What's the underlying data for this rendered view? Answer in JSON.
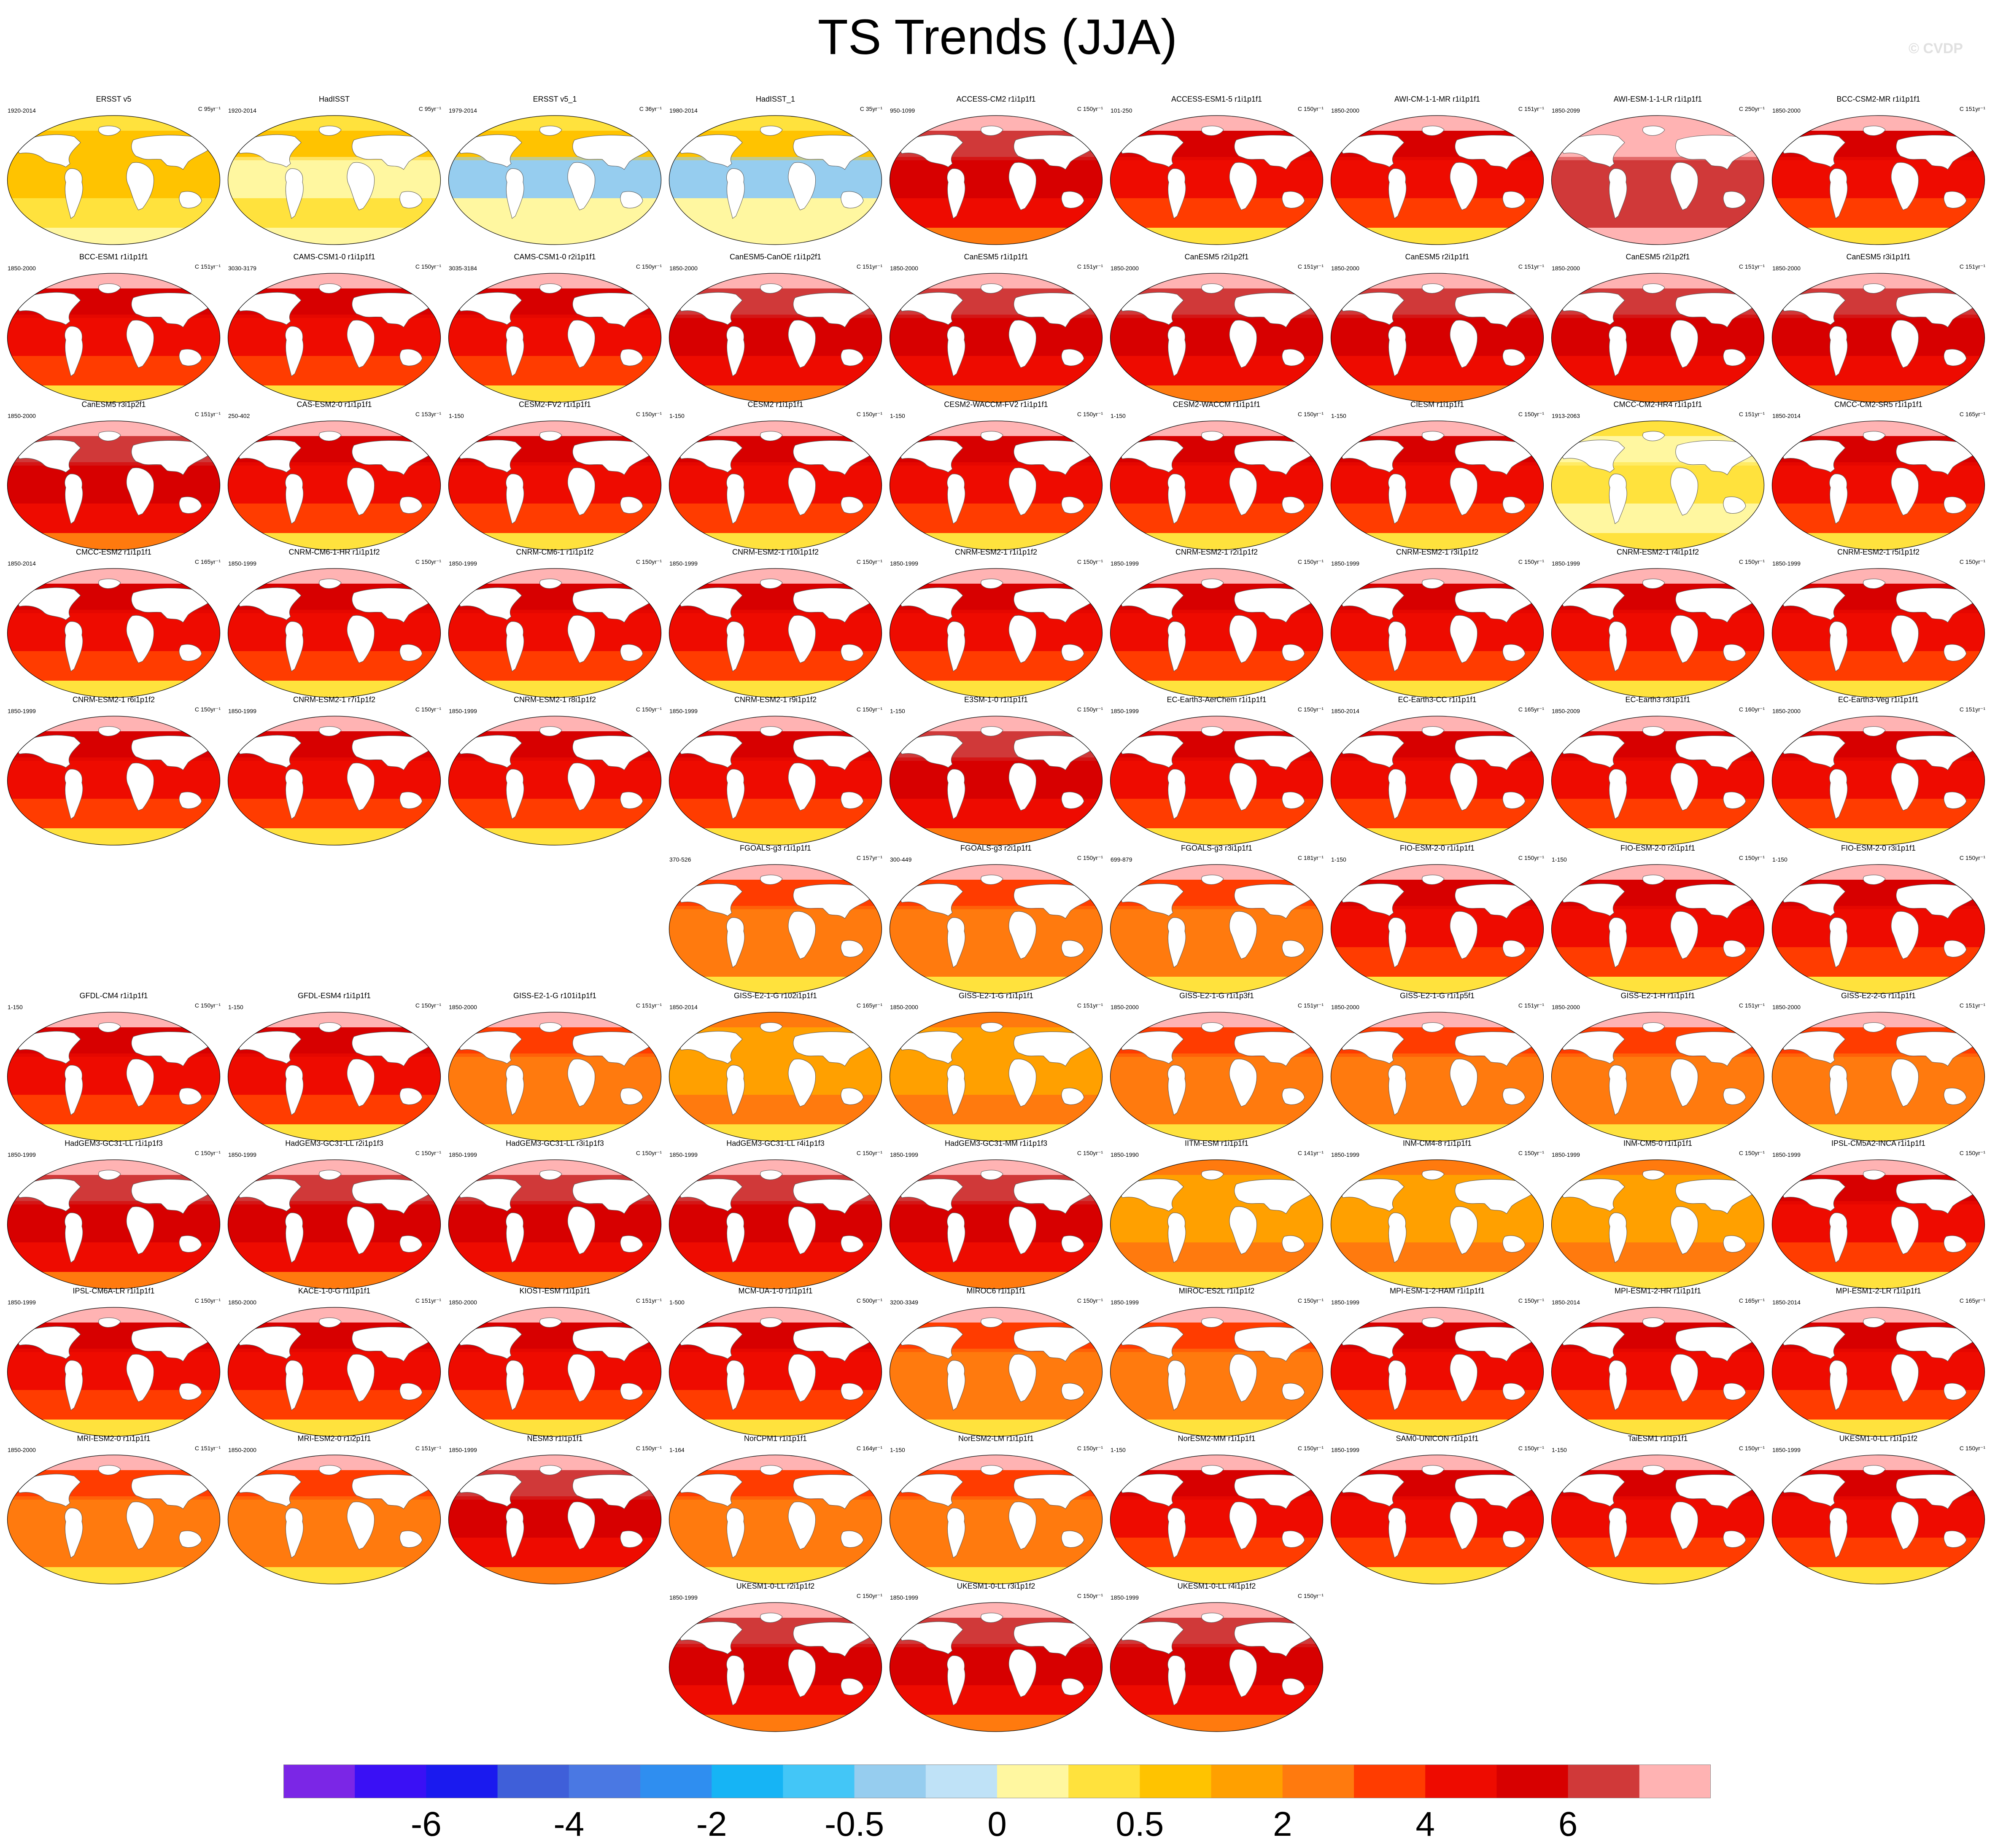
{
  "chart_data": {
    "type": "heatmap",
    "title": "TS Trends (JJA)",
    "watermark": "© CVDP",
    "colorbar": {
      "colors": [
        "#7b26e6",
        "#3a10f5",
        "#1a1aef",
        "#3f5fd9",
        "#4a78e3",
        "#2f8ef0",
        "#16b4f5",
        "#43c6f7",
        "#96cdef",
        "#bfe2f7",
        "#fff7a0",
        "#ffe23d",
        "#ffc300",
        "#ffa000",
        "#ff7a0e",
        "#ff3c00",
        "#ee0b00",
        "#d70000",
        "#d03939",
        "#ffb3b3"
      ],
      "tick_labels": [
        "-6",
        "-4",
        "-2",
        "-0.5",
        "0",
        "0.5",
        "2",
        "4",
        "6"
      ]
    },
    "panels": [
      {
        "title": "ERSST v5",
        "years": "1920-2014",
        "scale": "C 95yr⁻¹",
        "palette": "obs_warm"
      },
      {
        "title": "HadISST",
        "years": "1920-2014",
        "scale": "C 95yr⁻¹",
        "palette": "obs_mix"
      },
      {
        "title": "ERSST v5_1",
        "years": "1979-2014",
        "scale": "C 36yr⁻¹",
        "palette": "obs_cool"
      },
      {
        "title": "HadISST_1",
        "years": "1980-2014",
        "scale": "C 35yr⁻¹",
        "palette": "obs_cool"
      },
      {
        "title": "ACCESS-CM2 r1i1p1f1",
        "years": "950-1099",
        "scale": "C 150yr⁻¹",
        "palette": "deep"
      },
      {
        "title": "ACCESS-ESM1-5 r1i1p1f1",
        "years": "101-250",
        "scale": "C 150yr⁻¹",
        "palette": "red"
      },
      {
        "title": "AWI-CM-1-1-MR r1i1p1f1",
        "years": "1850-2000",
        "scale": "C 151yr⁻¹",
        "palette": "red"
      },
      {
        "title": "AWI-ESM-1-1-LR r1i1p1f1",
        "years": "1850-2099",
        "scale": "C 250yr⁻¹",
        "palette": "pink"
      },
      {
        "title": "BCC-CSM2-MR r1i1p1f1",
        "years": "1850-2000",
        "scale": "C 151yr⁻¹",
        "palette": "red"
      },
      {
        "title": "BCC-ESM1 r1i1p1f1",
        "years": "1850-2000",
        "scale": "C 151yr⁻¹",
        "palette": "red"
      },
      {
        "title": "CAMS-CSM1-0 r1i1p1f1",
        "years": "3030-3179",
        "scale": "C 150yr⁻¹",
        "palette": "red"
      },
      {
        "title": "CAMS-CSM1-0 r2i1p1f1",
        "years": "3035-3184",
        "scale": "C 150yr⁻¹",
        "palette": "red"
      },
      {
        "title": "CanESM5-CanOE r1i1p2f1",
        "years": "1850-2000",
        "scale": "C 151yr⁻¹",
        "palette": "deep"
      },
      {
        "title": "CanESM5 r1i1p1f1",
        "years": "1850-2000",
        "scale": "C 151yr⁻¹",
        "palette": "deep"
      },
      {
        "title": "CanESM5 r2i1p2f1",
        "years": "1850-2000",
        "scale": "C 151yr⁻¹",
        "palette": "deep"
      },
      {
        "title": "CanESM5 r2i1p1f1",
        "years": "1850-2000",
        "scale": "C 151yr⁻¹",
        "palette": "deep"
      },
      {
        "title": "CanESM5 r2i1p2f1",
        "years": "1850-2000",
        "scale": "C 151yr⁻¹",
        "palette": "deep"
      },
      {
        "title": "CanESM5 r3i1p1f1",
        "years": "1850-2000",
        "scale": "C 151yr⁻¹",
        "palette": "deep"
      },
      {
        "title": "CanESM5 r3i1p2f1",
        "years": "1850-2000",
        "scale": "C 151yr⁻¹",
        "palette": "deep"
      },
      {
        "title": "CAS-ESM2-0 r1i1p1f1",
        "years": "250-402",
        "scale": "C 153yr⁻¹",
        "palette": "red"
      },
      {
        "title": "CESM2-FV2 r1i1p1f1",
        "years": "1-150",
        "scale": "C 150yr⁻¹",
        "palette": "red"
      },
      {
        "title": "CESM2 r1i1p1f1",
        "years": "1-150",
        "scale": "C 150yr⁻¹",
        "palette": "red"
      },
      {
        "title": "CESM2-WACCM-FV2 r1i1p1f1",
        "years": "1-150",
        "scale": "C 150yr⁻¹",
        "palette": "red"
      },
      {
        "title": "CESM2-WACCM r1i1p1f1",
        "years": "1-150",
        "scale": "C 150yr⁻¹",
        "palette": "red"
      },
      {
        "title": "CIESM r1i1p1f1",
        "years": "1-150",
        "scale": "C 150yr⁻¹",
        "palette": "red"
      },
      {
        "title": "CMCC-CM2-HR4 r1i1p1f1",
        "years": "1913-2063",
        "scale": "C 151yr⁻¹",
        "palette": "yellow"
      },
      {
        "title": "CMCC-CM2-SR5 r1i1p1f1",
        "years": "1850-2014",
        "scale": "C 165yr⁻¹",
        "palette": "red"
      },
      {
        "title": "CMCC-ESM2 r1i1p1f1",
        "years": "1850-2014",
        "scale": "C 165yr⁻¹",
        "palette": "red"
      },
      {
        "title": "CNRM-CM6-1-HR r1i1p1f2",
        "years": "1850-1999",
        "scale": "C 150yr⁻¹",
        "palette": "red"
      },
      {
        "title": "CNRM-CM6-1 r1i1p1f2",
        "years": "1850-1999",
        "scale": "C 150yr⁻¹",
        "palette": "red"
      },
      {
        "title": "CNRM-ESM2-1 r10i1p1f2",
        "years": "1850-1999",
        "scale": "C 150yr⁻¹",
        "palette": "red"
      },
      {
        "title": "CNRM-ESM2-1 r1i1p1f2",
        "years": "1850-1999",
        "scale": "C 150yr⁻¹",
        "palette": "red"
      },
      {
        "title": "CNRM-ESM2-1 r2i1p1f2",
        "years": "1850-1999",
        "scale": "C 150yr⁻¹",
        "palette": "red"
      },
      {
        "title": "CNRM-ESM2-1 r3i1p1f2",
        "years": "1850-1999",
        "scale": "C 150yr⁻¹",
        "palette": "red"
      },
      {
        "title": "CNRM-ESM2-1 r4i1p1f2",
        "years": "1850-1999",
        "scale": "C 150yr⁻¹",
        "palette": "red"
      },
      {
        "title": "CNRM-ESM2-1 r5i1p1f2",
        "years": "1850-1999",
        "scale": "C 150yr⁻¹",
        "palette": "red"
      },
      {
        "title": "CNRM-ESM2-1 r6i1p1f2",
        "years": "1850-1999",
        "scale": "C 150yr⁻¹",
        "palette": "red"
      },
      {
        "title": "CNRM-ESM2-1 r7i1p1f2",
        "years": "1850-1999",
        "scale": "C 150yr⁻¹",
        "palette": "red"
      },
      {
        "title": "CNRM-ESM2-1 r8i1p1f2",
        "years": "1850-1999",
        "scale": "C 150yr⁻¹",
        "palette": "red"
      },
      {
        "title": "CNRM-ESM2-1 r9i1p1f2",
        "years": "1850-1999",
        "scale": "C 150yr⁻¹",
        "palette": "red"
      },
      {
        "title": "E3SM-1-0 r1i1p1f1",
        "years": "1-150",
        "scale": "C 150yr⁻¹",
        "palette": "deep"
      },
      {
        "title": "EC-Earth3-AerChem r1i1p1f1",
        "years": "1850-1999",
        "scale": "C 150yr⁻¹",
        "palette": "red"
      },
      {
        "title": "EC-Earth3-CC r1i1p1f1",
        "years": "1850-2014",
        "scale": "C 165yr⁻¹",
        "palette": "red"
      },
      {
        "title": "EC-Earth3 r3i1p1f1",
        "years": "1850-2009",
        "scale": "C 160yr⁻¹",
        "palette": "red"
      },
      {
        "title": "EC-Earth3-Veg r1i1p1f1",
        "years": "1850-2000",
        "scale": "C 151yr⁻¹",
        "palette": "red"
      },
      {
        "title": "FGOALS-g3 r1i1p1f1",
        "years": "370-526",
        "scale": "C 157yr⁻¹",
        "palette": "orange"
      },
      {
        "title": "FGOALS-g3 r2i1p1f1",
        "years": "300-449",
        "scale": "C 150yr⁻¹",
        "palette": "orange"
      },
      {
        "title": "FGOALS-g3 r3i1p1f1",
        "years": "699-879",
        "scale": "C 181yr⁻¹",
        "palette": "orange"
      },
      {
        "title": "FIO-ESM-2-0 r1i1p1f1",
        "years": "1-150",
        "scale": "C 150yr⁻¹",
        "palette": "red"
      },
      {
        "title": "FIO-ESM-2-0 r2i1p1f1",
        "years": "1-150",
        "scale": "C 150yr⁻¹",
        "palette": "red"
      },
      {
        "title": "FIO-ESM-2-0 r3i1p1f1",
        "years": "1-150",
        "scale": "C 150yr⁻¹",
        "palette": "red"
      },
      {
        "title": "GFDL-CM4 r1i1p1f1",
        "years": "1-150",
        "scale": "C 150yr⁻¹",
        "palette": "red"
      },
      {
        "title": "GFDL-ESM4 r1i1p1f1",
        "years": "1-150",
        "scale": "C 150yr⁻¹",
        "palette": "red"
      },
      {
        "title": "GISS-E2-1-G r101i1p1f1",
        "years": "1850-2000",
        "scale": "C 151yr⁻¹",
        "palette": "orange"
      },
      {
        "title": "GISS-E2-1-G r102i1p1f1",
        "years": "1850-2014",
        "scale": "C 165yr⁻¹",
        "palette": "light"
      },
      {
        "title": "GISS-E2-1-G r1i1p1f1",
        "years": "1850-2000",
        "scale": "C 151yr⁻¹",
        "palette": "light"
      },
      {
        "title": "GISS-E2-1-G r1i1p3f1",
        "years": "1850-2000",
        "scale": "C 151yr⁻¹",
        "palette": "orange"
      },
      {
        "title": "GISS-E2-1-G r1i1p5f1",
        "years": "1850-2000",
        "scale": "C 151yr⁻¹",
        "palette": "orange"
      },
      {
        "title": "GISS-E2-1-H r1i1p1f1",
        "years": "1850-2000",
        "scale": "C 151yr⁻¹",
        "palette": "orange"
      },
      {
        "title": "GISS-E2-2-G r1i1p1f1",
        "years": "1850-2000",
        "scale": "C 151yr⁻¹",
        "palette": "orange"
      },
      {
        "title": "HadGEM3-GC31-LL r1i1p1f3",
        "years": "1850-1999",
        "scale": "C 150yr⁻¹",
        "palette": "deep"
      },
      {
        "title": "HadGEM3-GC31-LL r2i1p1f3",
        "years": "1850-1999",
        "scale": "C 150yr⁻¹",
        "palette": "deep"
      },
      {
        "title": "HadGEM3-GC31-LL r3i1p1f3",
        "years": "1850-1999",
        "scale": "C 150yr⁻¹",
        "palette": "deep"
      },
      {
        "title": "HadGEM3-GC31-LL r4i1p1f3",
        "years": "1850-1999",
        "scale": "C 150yr⁻¹",
        "palette": "deep"
      },
      {
        "title": "HadGEM3-GC31-MM r1i1p1f3",
        "years": "1850-1999",
        "scale": "C 150yr⁻¹",
        "palette": "deep"
      },
      {
        "title": "IITM-ESM r1i1p1f1",
        "years": "1850-1990",
        "scale": "C 141yr⁻¹",
        "palette": "light"
      },
      {
        "title": "INM-CM4-8 r1i1p1f1",
        "years": "1850-1999",
        "scale": "C 150yr⁻¹",
        "palette": "light"
      },
      {
        "title": "INM-CM5-0 r1i1p1f1",
        "years": "1850-1999",
        "scale": "C 150yr⁻¹",
        "palette": "light"
      },
      {
        "title": "IPSL-CM5A2-INCA r1i1p1f1",
        "years": "1850-1999",
        "scale": "C 150yr⁻¹",
        "palette": "red"
      },
      {
        "title": "IPSL-CM6A-LR r1i1p1f1",
        "years": "1850-1999",
        "scale": "C 150yr⁻¹",
        "palette": "red"
      },
      {
        "title": "KACE-1-0-G r1i1p1f1",
        "years": "1850-2000",
        "scale": "C 151yr⁻¹",
        "palette": "red"
      },
      {
        "title": "KIOST-ESM r1i1p1f1",
        "years": "1850-2000",
        "scale": "C 151yr⁻¹",
        "palette": "red"
      },
      {
        "title": "MCM-UA-1-0 r1i1p1f1",
        "years": "1-500",
        "scale": "C 500yr⁻¹",
        "palette": "red"
      },
      {
        "title": "MIROC6 r1i1p1f1",
        "years": "3200-3349",
        "scale": "C 150yr⁻¹",
        "palette": "orange"
      },
      {
        "title": "MIROC-ES2L r1i1p1f2",
        "years": "1850-1999",
        "scale": "C 150yr⁻¹",
        "palette": "orange"
      },
      {
        "title": "MPI-ESM-1-2-HAM r1i1p1f1",
        "years": "1850-1999",
        "scale": "C 150yr⁻¹",
        "palette": "red"
      },
      {
        "title": "MPI-ESM1-2-HR r1i1p1f1",
        "years": "1850-2014",
        "scale": "C 165yr⁻¹",
        "palette": "red"
      },
      {
        "title": "MPI-ESM1-2-LR r1i1p1f1",
        "years": "1850-2014",
        "scale": "C 165yr⁻¹",
        "palette": "red"
      },
      {
        "title": "MRI-ESM2-0 r1i1p1f1",
        "years": "1850-2000",
        "scale": "C 151yr⁻¹",
        "palette": "orange"
      },
      {
        "title": "MRI-ESM2-0 r1i2p1f1",
        "years": "1850-2000",
        "scale": "C 151yr⁻¹",
        "palette": "orange"
      },
      {
        "title": "NESM3 r1i1p1f1",
        "years": "1850-1999",
        "scale": "C 150yr⁻¹",
        "palette": "deep"
      },
      {
        "title": "NorCPM1 r1i1p1f1",
        "years": "1-164",
        "scale": "C 164yr⁻¹",
        "palette": "orange"
      },
      {
        "title": "NorESM2-LM r1i1p1f1",
        "years": "1-150",
        "scale": "C 150yr⁻¹",
        "palette": "orange"
      },
      {
        "title": "NorESM2-MM r1i1p1f1",
        "years": "1-150",
        "scale": "C 150yr⁻¹",
        "palette": "red"
      },
      {
        "title": "SAM0-UNICON r1i1p1f1",
        "years": "1850-1999",
        "scale": "C 150yr⁻¹",
        "palette": "red"
      },
      {
        "title": "TaiESM1 r1i1p1f1",
        "years": "1-150",
        "scale": "C 150yr⁻¹",
        "palette": "red"
      },
      {
        "title": "UKESM1-0-LL r1i1p1f2",
        "years": "1850-1999",
        "scale": "C 150yr⁻¹",
        "palette": "red"
      },
      {
        "title": "UKESM1-0-LL r2i1p1f2",
        "years": "1850-1999",
        "scale": "C 150yr⁻¹",
        "palette": "deep"
      },
      {
        "title": "UKESM1-0-LL r3i1p1f2",
        "years": "1850-1999",
        "scale": "C 150yr⁻¹",
        "palette": "deep"
      },
      {
        "title": "UKESM1-0-LL r4i1p1f2",
        "years": "1850-1999",
        "scale": "C 150yr⁻¹",
        "palette": "deep"
      }
    ]
  }
}
